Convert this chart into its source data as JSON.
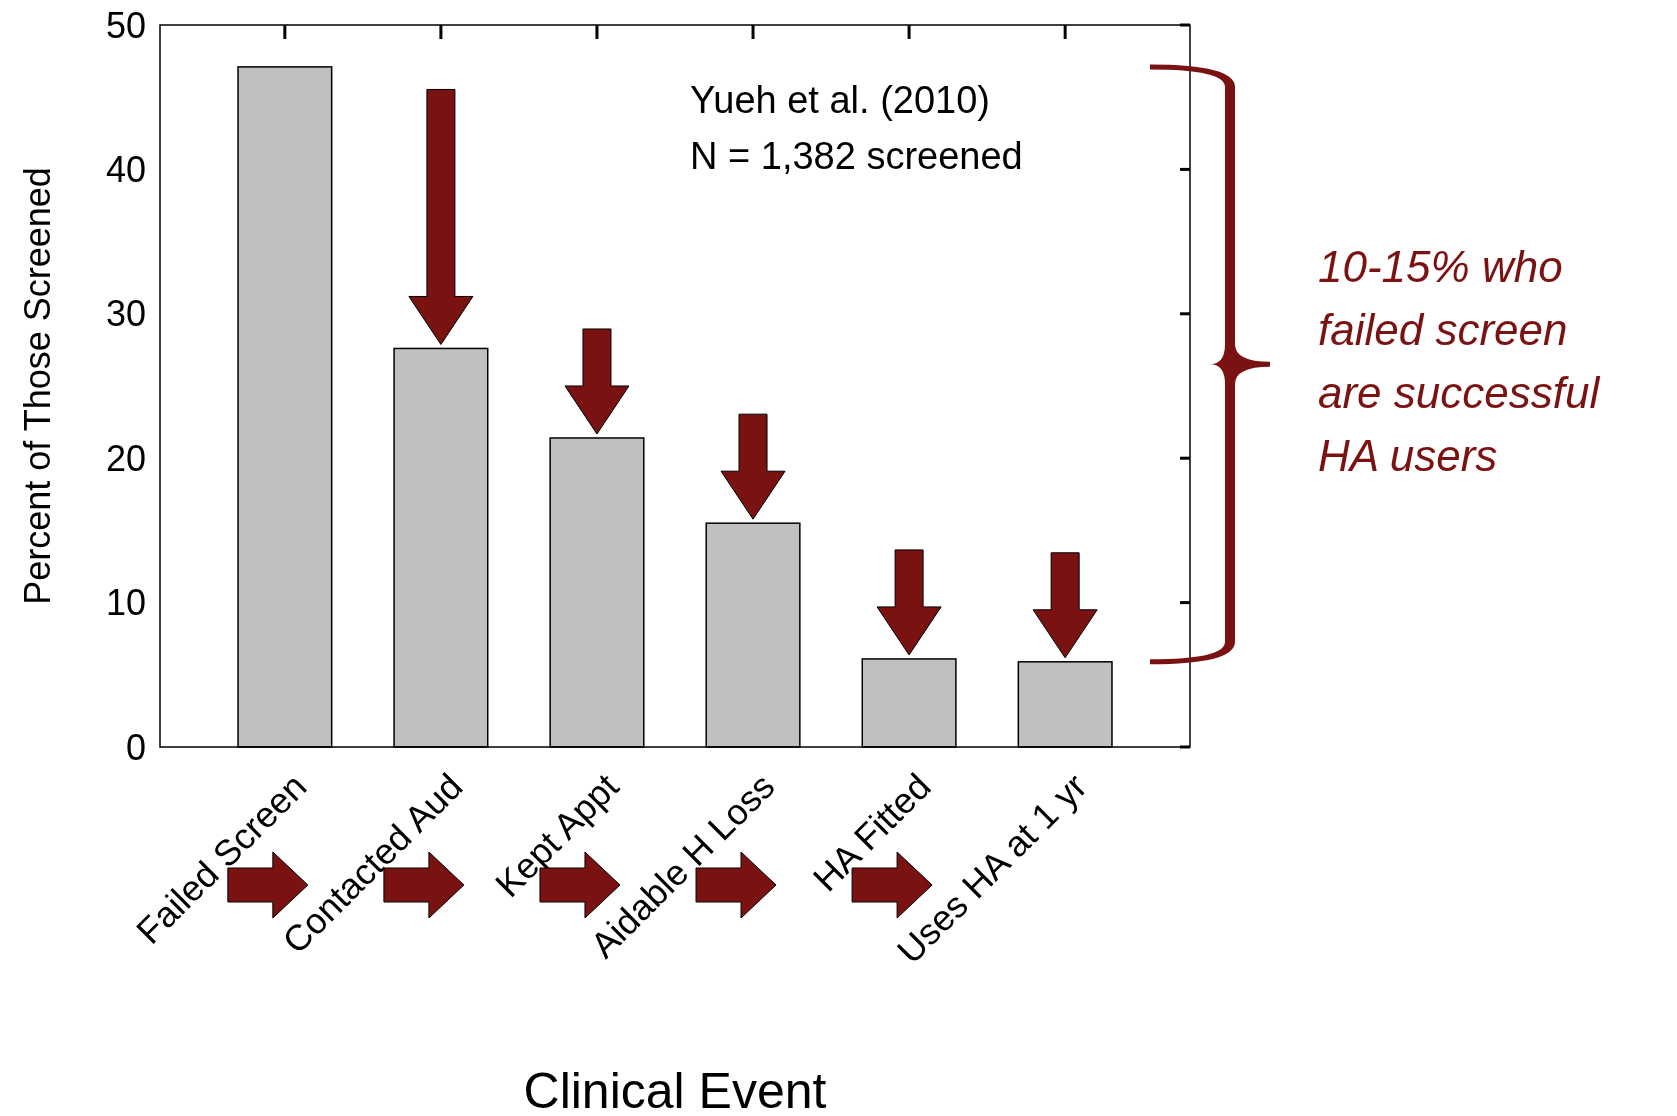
{
  "chart_data": {
    "type": "bar",
    "xlabel": "Clinical Event",
    "ylabel": "Percent of Those Screened",
    "categories": [
      "Failed Screen",
      "Contacted Aud",
      "Kept Appt",
      "Aidable H Loss",
      "HA Fitted",
      "Uses HA at 1 yr"
    ],
    "values": [
      47.1,
      27.6,
      21.4,
      15.5,
      6.1,
      5.9
    ],
    "color": "#c0c0c0",
    "ylim": [
      0,
      50
    ],
    "yticks": [
      0,
      10,
      20,
      30,
      40,
      50
    ],
    "grid": false,
    "annotations": [
      "Yueh et al. (2010)\nN = 1,382 screened",
      "10-15% who\nfailed screen\nare successful\nHA users"
    ]
  }
}
